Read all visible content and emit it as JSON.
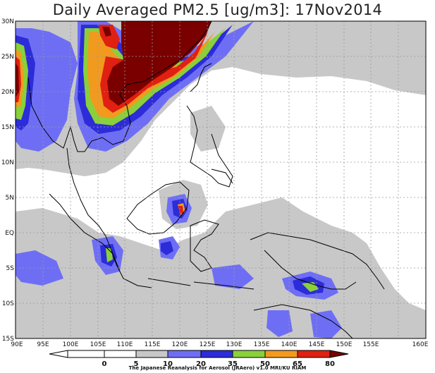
{
  "title": "Daily Averaged PM2.5 [ug/m3]: 17Nov2014",
  "axes": {
    "lon_labels": [
      "90E",
      "95E",
      "100E",
      "105E",
      "110E",
      "115E",
      "120E",
      "125E",
      "130E",
      "135E",
      "140E",
      "145E",
      "150E",
      "155E",
      "160E"
    ],
    "lat_labels": [
      "30N",
      "25N",
      "20N",
      "15N",
      "10N",
      "5N",
      "EQ",
      "5S",
      "10S",
      "15S"
    ]
  },
  "colorbar": {
    "levels": [
      "0",
      "5",
      "10",
      "20",
      "35",
      "50",
      "65",
      "80"
    ],
    "colors": [
      "#ffffff",
      "#ffffff",
      "#c8c8c8",
      "#6e6ef5",
      "#2c2cd8",
      "#8ad03a",
      "#f29a1e",
      "#e02010",
      "#7a0000"
    ]
  },
  "credit": "The Japanese Reanalysis for Aerosol (JRAero) v1.0  MRI/KU RIAM"
}
